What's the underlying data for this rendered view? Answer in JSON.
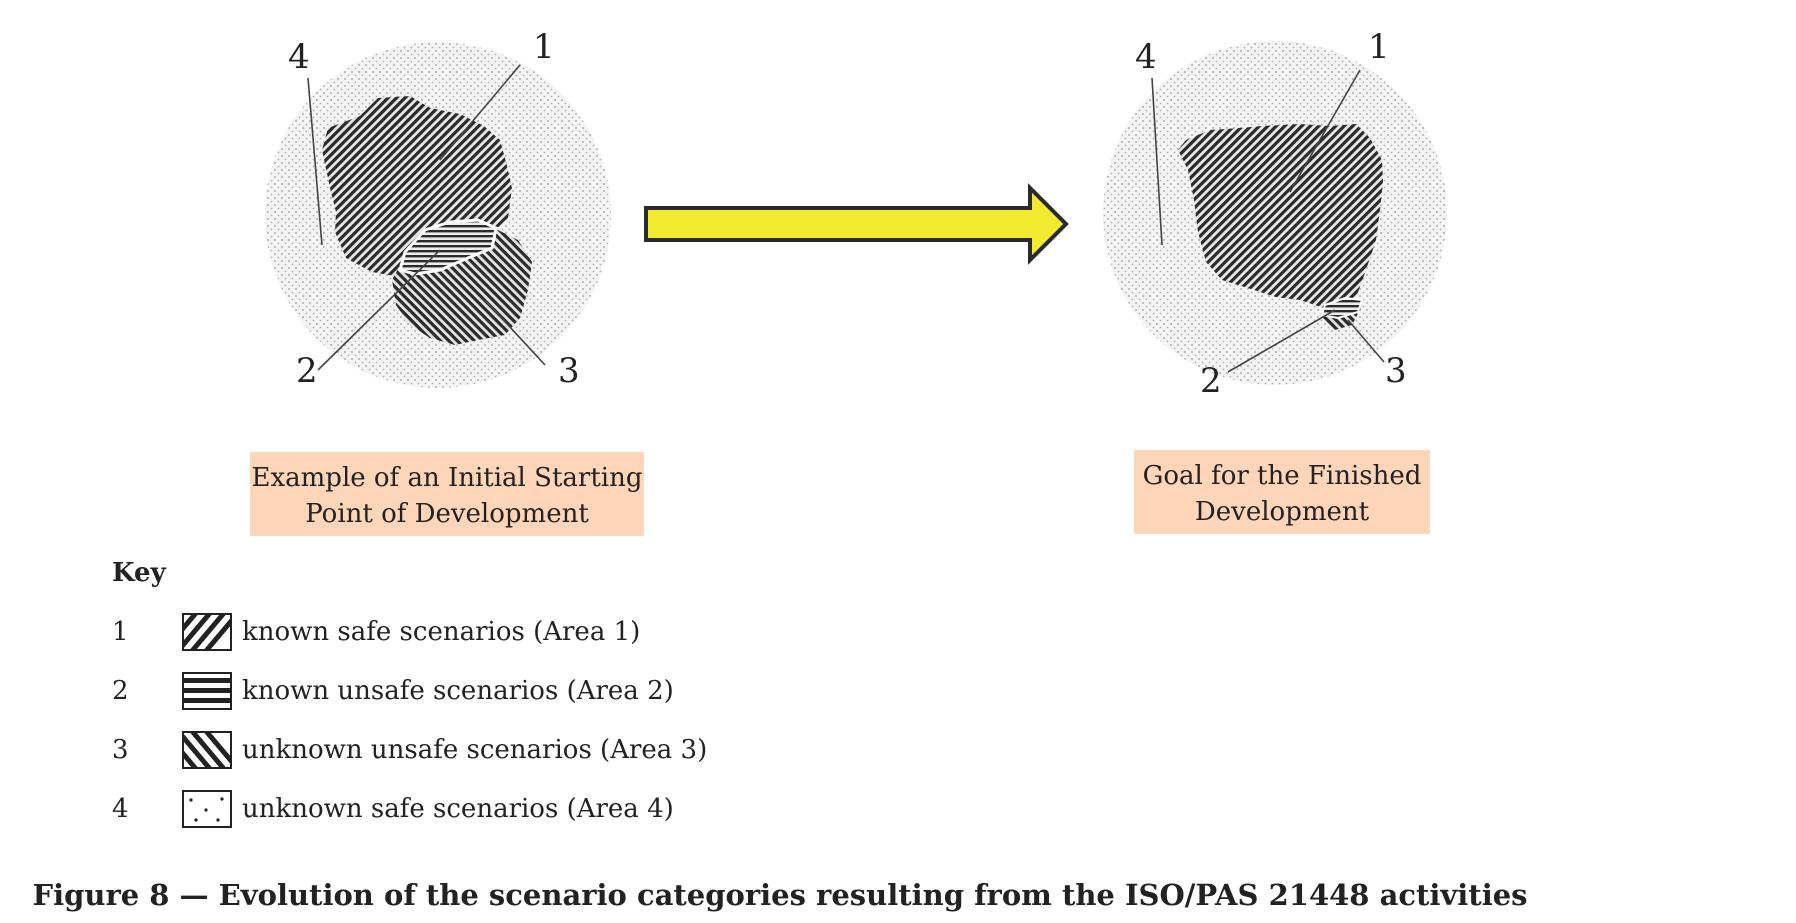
{
  "diagram": {
    "left_panel": {
      "callouts": [
        "1",
        "2",
        "3",
        "4"
      ],
      "caption_lines": [
        "Example of an Initial Starting",
        "Point of Development"
      ]
    },
    "right_panel": {
      "callouts": [
        "1",
        "2",
        "3",
        "4"
      ],
      "caption_lines": [
        "Goal for the Finished",
        "Development"
      ]
    },
    "arrow_color": "#f2ea2e",
    "caption_bg": "#fdd5b8"
  },
  "key": {
    "title": "Key",
    "items": [
      {
        "number": "1",
        "label": "known safe scenarios (Area 1)",
        "pattern": "diagonal-forward"
      },
      {
        "number": "2",
        "label": "known unsafe scenarios (Area 2)",
        "pattern": "horizontal"
      },
      {
        "number": "3",
        "label": "unknown unsafe scenarios (Area 3)",
        "pattern": "diagonal-back"
      },
      {
        "number": "4",
        "label": "unknown safe scenarios (Area 4)",
        "pattern": "dotted"
      }
    ]
  },
  "figure_caption": "Figure 8 — Evolution of the scenario categories resulting from the ISO/PAS 21448 activities"
}
